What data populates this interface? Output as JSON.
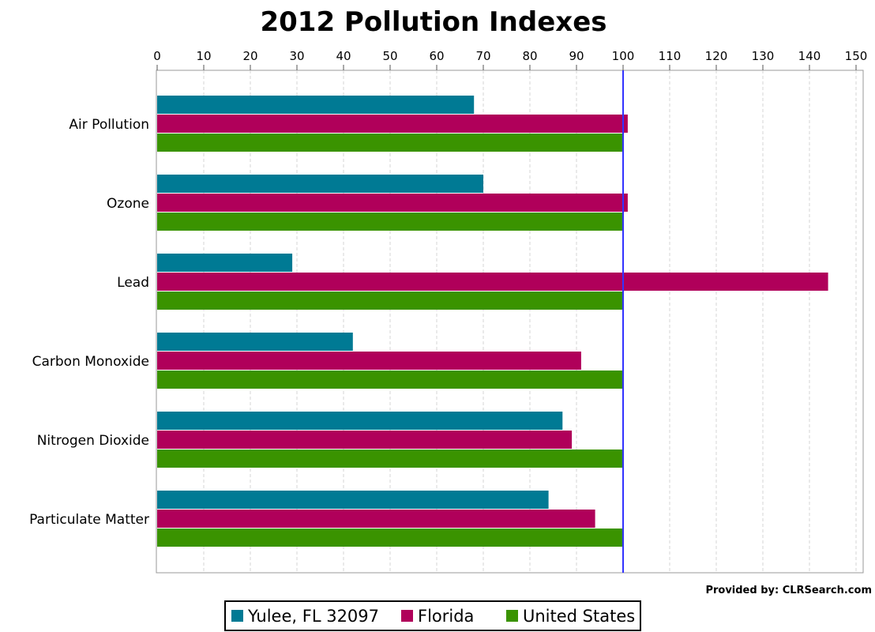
{
  "chart_data": {
    "type": "bar",
    "orientation": "horizontal",
    "title": "2012 Pollution Indexes",
    "xlabel": "",
    "ylabel": "",
    "xlim": [
      0,
      150
    ],
    "x_ticks": [
      0,
      10,
      20,
      30,
      40,
      50,
      60,
      70,
      80,
      90,
      100,
      110,
      120,
      130,
      140,
      150
    ],
    "x_axis_position": "top",
    "grid": true,
    "reference_line": 100,
    "categories": [
      "Air Pollution",
      "Ozone",
      "Lead",
      "Carbon Monoxide",
      "Nitrogen Dioxide",
      "Particulate Matter"
    ],
    "series": [
      {
        "name": "Yulee, FL 32097",
        "color": "#007a94",
        "values": [
          68,
          70,
          29,
          42,
          87,
          84
        ]
      },
      {
        "name": "Florida",
        "color": "#b0005a",
        "values": [
          101,
          101,
          144,
          91,
          89,
          94
        ]
      },
      {
        "name": "United States",
        "color": "#3a9300",
        "values": [
          100,
          100,
          100,
          100,
          100,
          100
        ]
      }
    ],
    "legend_position": "bottom-center",
    "credit": "Provided by: CLRSearch.com"
  }
}
